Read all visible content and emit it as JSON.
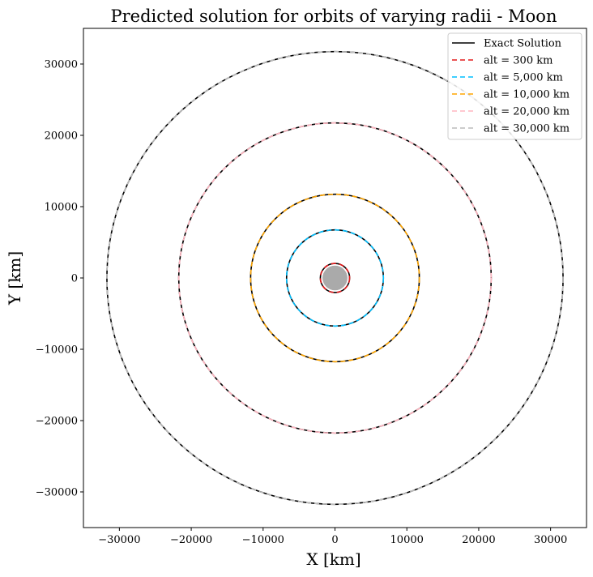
{
  "chart_data": {
    "type": "line",
    "title": "Predicted solution for orbits of varying radii - Moon",
    "xlabel": "X [km]",
    "ylabel": "Y [km]",
    "xlim": [
      -35000,
      35000
    ],
    "ylim": [
      -35000,
      35000
    ],
    "xticks": [
      -30000,
      -20000,
      -10000,
      0,
      10000,
      20000,
      30000
    ],
    "yticks": [
      -30000,
      -20000,
      -10000,
      0,
      10000,
      20000,
      30000
    ],
    "xtick_labels": [
      "−30000",
      "−20000",
      "−10000",
      "0",
      "10000",
      "20000",
      "30000"
    ],
    "ytick_labels": [
      "−30000",
      "−20000",
      "−10000",
      "0",
      "10000",
      "20000",
      "30000"
    ],
    "grid": false,
    "legend_position": "top-right",
    "moon": {
      "radius_km": 1737,
      "color": "#aaaaaa"
    },
    "exact_solution": {
      "name": "Exact Solution",
      "color": "#000000",
      "style": "solid"
    },
    "series": [
      {
        "name": "alt = 300 km",
        "color": "#e41a1c",
        "style": "dashed",
        "radius_km": 2037
      },
      {
        "name": "alt = 5,000 km",
        "color": "#00bfff",
        "style": "dashed",
        "radius_km": 6737
      },
      {
        "name": "alt = 10,000 km",
        "color": "#ffa500",
        "style": "dashed",
        "radius_km": 11737
      },
      {
        "name": "alt = 20,000 km",
        "color": "#ffb6c1",
        "style": "dashed",
        "radius_km": 21737
      },
      {
        "name": "alt = 30,000 km",
        "color": "#bbbbbb",
        "style": "dashed",
        "radius_km": 31737
      }
    ]
  }
}
